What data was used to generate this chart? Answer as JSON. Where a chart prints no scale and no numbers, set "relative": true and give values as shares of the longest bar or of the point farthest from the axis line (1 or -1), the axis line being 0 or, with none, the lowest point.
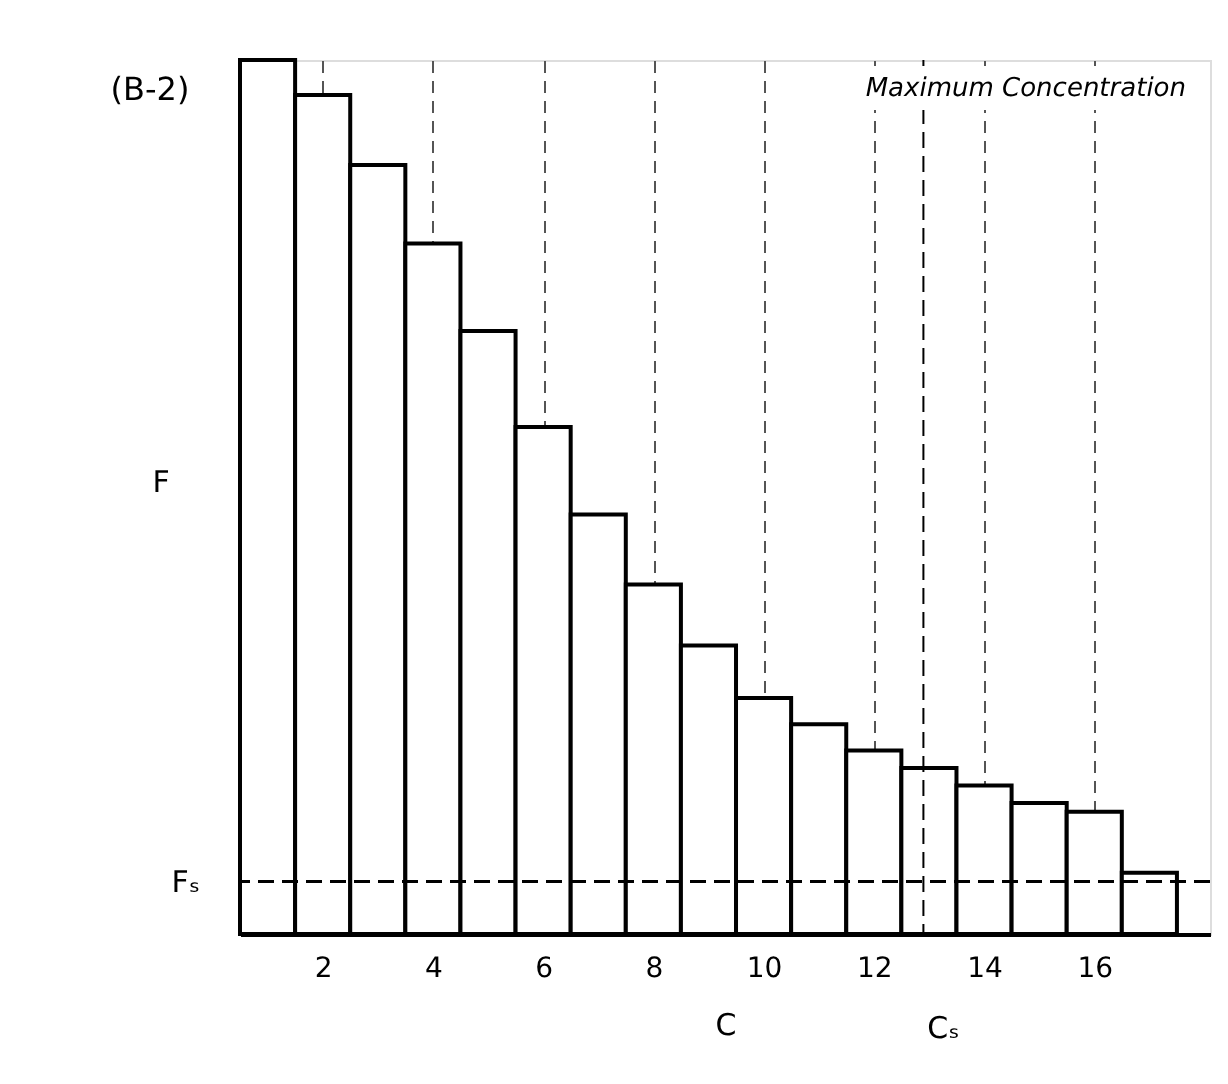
{
  "chart_data": {
    "type": "bar",
    "relative": true,
    "x": [
      1,
      2,
      3,
      4,
      5,
      6,
      7,
      8,
      9,
      10,
      11,
      12,
      13,
      14,
      15,
      16,
      17
    ],
    "values": [
      1,
      0.96,
      0.88,
      0.79,
      0.69,
      0.58,
      0.48,
      0.4,
      0.33,
      0.27,
      0.24,
      0.21,
      0.19,
      0.17,
      0.15,
      0.14,
      0.07
    ],
    "color": "#ffffff",
    "xlim": [
      0.5,
      18.1
    ],
    "xticks": [
      2,
      4,
      6,
      8,
      10,
      12,
      14,
      16
    ],
    "xlabel": "C",
    "ylabel": "F",
    "grid": "x",
    "ref_lines": [
      {
        "axis": "y",
        "value": 0.06,
        "label": "Fₛ",
        "line_style": "dashed"
      },
      {
        "axis": "x",
        "value": 12.9,
        "label": "Cₛ",
        "line_style": "dashed"
      }
    ],
    "annotations": [
      "(B-2)",
      "Maximum Concentration"
    ]
  }
}
